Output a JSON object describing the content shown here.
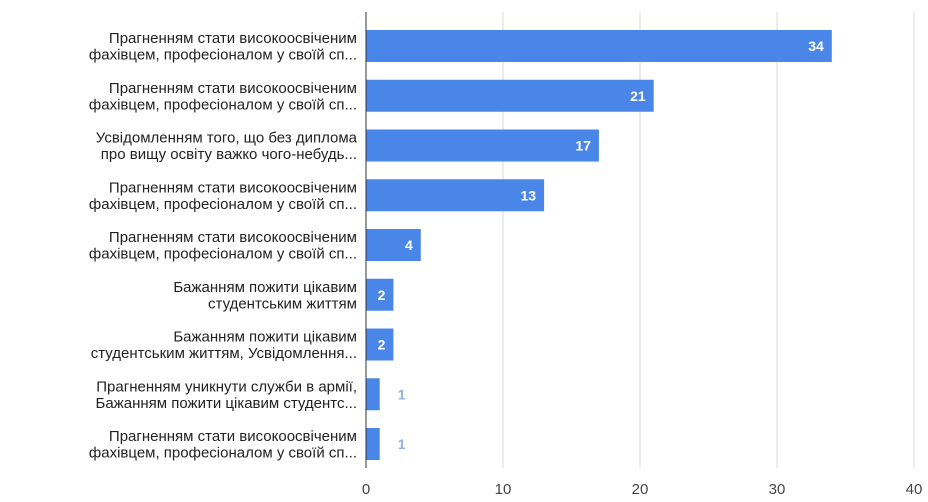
{
  "chart_data": {
    "type": "bar",
    "orientation": "horizontal",
    "categories": [
      [
        "Прагненням стати високоосвіченим",
        "фахівцем, професіоналом у своїй сп..."
      ],
      [
        "Прагненням стати високоосвіченим",
        "фахівцем, професіоналом у своїй сп..."
      ],
      [
        "Усвідомленням того, що без диплома",
        "про вищу освіту важко чого-небудь..."
      ],
      [
        "Прагненням стати високоосвіченим",
        "фахівцем, професіоналом у своїй сп..."
      ],
      [
        "Прагненням стати високоосвіченим",
        "фахівцем, професіоналом у своїй сп..."
      ],
      [
        "Бажанням пожити цікавим",
        "студентським життям"
      ],
      [
        "Бажанням пожити цікавим",
        "студентським життям, Усвідомлення..."
      ],
      [
        "Прагненням уникнути служби в армії,",
        "Бажанням пожити цікавим студентс..."
      ],
      [
        "Прагненням стати високоосвіченим",
        "фахівцем, професіоналом у своїй сп..."
      ]
    ],
    "values": [
      34,
      21,
      17,
      13,
      4,
      2,
      2,
      1,
      1
    ],
    "xlim": [
      0,
      40
    ],
    "xticks": [
      0,
      10,
      20,
      30,
      40
    ],
    "grid": "vertical",
    "bar_color": "#4a86e8"
  }
}
